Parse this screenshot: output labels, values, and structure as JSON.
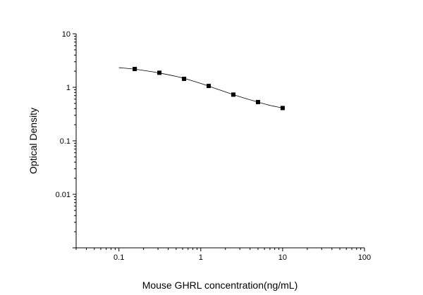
{
  "chart_data": {
    "type": "scatter",
    "xlabel": "Mouse GHRL concentration(ng/mL)",
    "ylabel": "Optical Density",
    "x_scale": "log",
    "y_scale": "log",
    "xlim": [
      0.03,
      100
    ],
    "ylim": [
      0.001,
      10
    ],
    "x_tick_labels": [
      "0.1",
      "1",
      "10",
      "100"
    ],
    "y_tick_labels": [
      "10",
      "1",
      "0.1",
      "0.01"
    ],
    "x_ticks": [
      0.1,
      1,
      10,
      100
    ],
    "y_ticks": [
      10,
      1,
      0.1,
      0.01
    ],
    "grid": false,
    "series": [
      {
        "marker": "square",
        "x": [
          0.156,
          0.312,
          0.625,
          1.25,
          2.5,
          5,
          10
        ],
        "y": [
          2.2,
          1.87,
          1.44,
          1.06,
          0.73,
          0.53,
          0.41
        ]
      }
    ],
    "fit_curve": {
      "x": [
        0.1,
        0.156,
        0.25,
        0.312,
        0.5,
        0.625,
        1.0,
        1.25,
        2.0,
        2.5,
        3.5,
        5,
        7,
        10
      ],
      "y": [
        2.33,
        2.18,
        1.96,
        1.85,
        1.6,
        1.47,
        1.18,
        1.05,
        0.82,
        0.73,
        0.62,
        0.53,
        0.46,
        0.41
      ]
    }
  }
}
